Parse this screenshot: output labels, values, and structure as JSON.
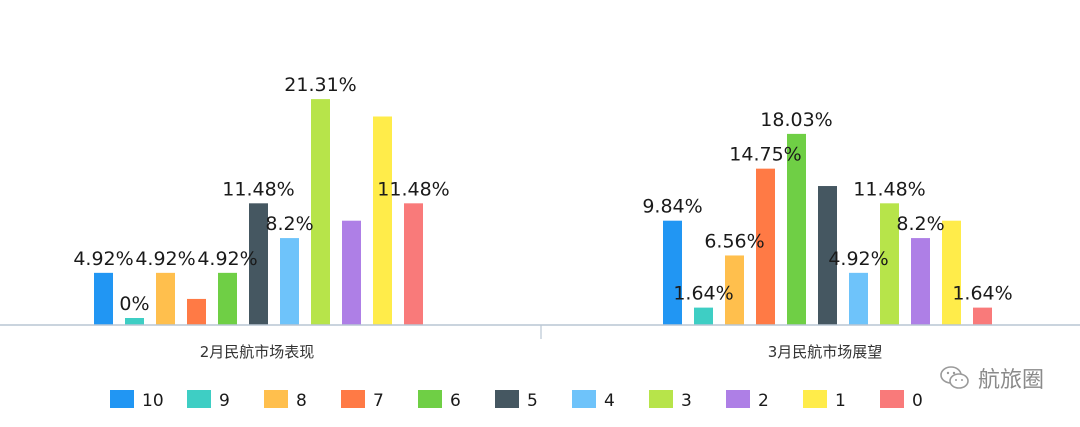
{
  "chart_data": {
    "type": "bar",
    "categories": [
      "2月民航市场表现",
      "3月民航市场展望"
    ],
    "series": [
      {
        "name": "10",
        "color": "#2196f3",
        "values": [
          4.92,
          9.84
        ],
        "labels": [
          "4.92%",
          "9.84%"
        ]
      },
      {
        "name": "9",
        "color": "#3ecec4",
        "values": [
          0,
          1.64
        ],
        "labels": [
          "0%",
          "1.64%"
        ]
      },
      {
        "name": "8",
        "color": "#ffbf4d",
        "values": [
          4.92,
          6.56
        ],
        "labels": [
          "4.92%",
          "6.56%"
        ]
      },
      {
        "name": "7",
        "color": "#ff7a45",
        "values": [
          2.46,
          14.75
        ],
        "labels": [
          "",
          "14.75%"
        ]
      },
      {
        "name": "6",
        "color": "#6fcf45",
        "values": [
          4.92,
          18.03
        ],
        "labels": [
          "4.92%",
          "18.03%"
        ]
      },
      {
        "name": "5",
        "color": "#455761",
        "values": [
          11.48,
          13.11
        ],
        "labels": [
          "11.48%",
          ""
        ]
      },
      {
        "name": "4",
        "color": "#6ec3fa",
        "values": [
          8.2,
          4.92
        ],
        "labels": [
          "8.2%",
          "4.92%"
        ]
      },
      {
        "name": "3",
        "color": "#b7e44a",
        "values": [
          21.31,
          11.48
        ],
        "labels": [
          "21.31%",
          "11.48%"
        ]
      },
      {
        "name": "2",
        "color": "#ae7fe6",
        "values": [
          9.84,
          8.2
        ],
        "labels": [
          "",
          "8.2%"
        ]
      },
      {
        "name": "1",
        "color": "#ffec4a",
        "values": [
          19.67,
          9.84
        ],
        "labels": [
          "",
          ""
        ]
      },
      {
        "name": "0",
        "color": "#f97a7a",
        "values": [
          11.48,
          1.64
        ],
        "labels": [
          "11.48%",
          "1.64%"
        ]
      }
    ],
    "ylim": [
      0,
      25
    ],
    "grid": false,
    "legend": "bottom"
  },
  "watermark": {
    "text": "航旅圈",
    "icon": "wechat-icon"
  }
}
